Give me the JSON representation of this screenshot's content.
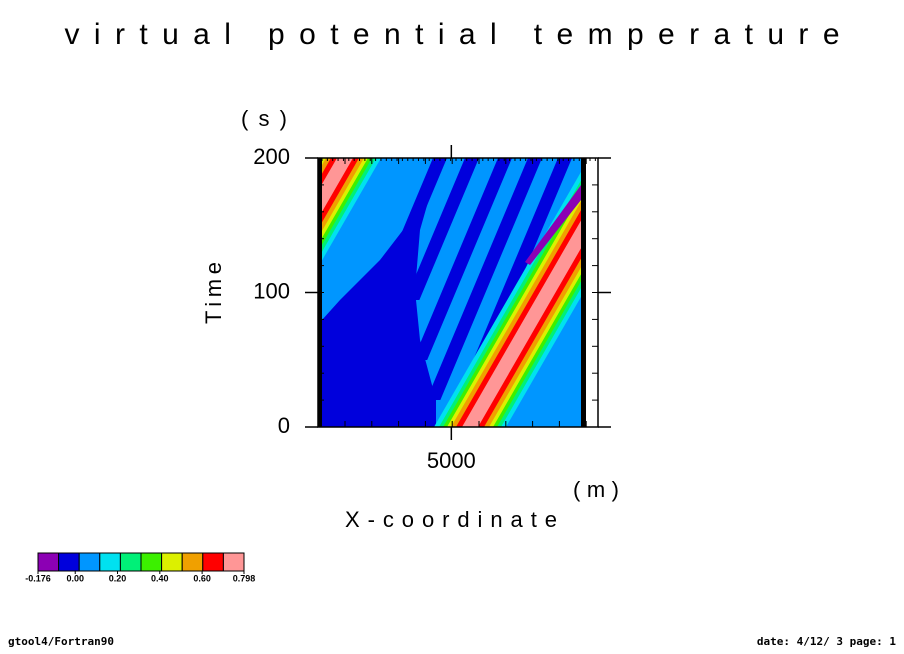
{
  "chart_data": {
    "type": "contour",
    "title": "virtual potential temperature",
    "x_label": "X-coordinate",
    "x_unit": "(m)",
    "y_label": "Time",
    "y_unit": "(s)",
    "xlim": [
      2500,
      7750
    ],
    "xticks": [
      5000
    ],
    "ylim": [
      0,
      200
    ],
    "yticks": [
      0,
      100,
      200
    ],
    "colorbar": {
      "colors": [
        "#8c00b4",
        "#0000dc",
        "#0096ff",
        "#00e1f0",
        "#00f078",
        "#3cf000",
        "#dcf000",
        "#f0a000",
        "#ff0000",
        "#ff9696"
      ],
      "lim": [
        -0.176,
        0.798
      ],
      "ticks": [
        {
          "value": -0.176,
          "label": "-0.176"
        },
        {
          "value": 0,
          "label": "0.00"
        },
        {
          "value": 0.2,
          "label": "0.20"
        },
        {
          "value": 0.4,
          "label": "0.40"
        },
        {
          "value": 0.6,
          "label": "0.60"
        },
        {
          "value": 0.798,
          "label": "0.798"
        }
      ]
    }
  },
  "footer": {
    "left": "gtool4/Fortran90",
    "right": "date: 4/12/ 3 page: 1"
  }
}
